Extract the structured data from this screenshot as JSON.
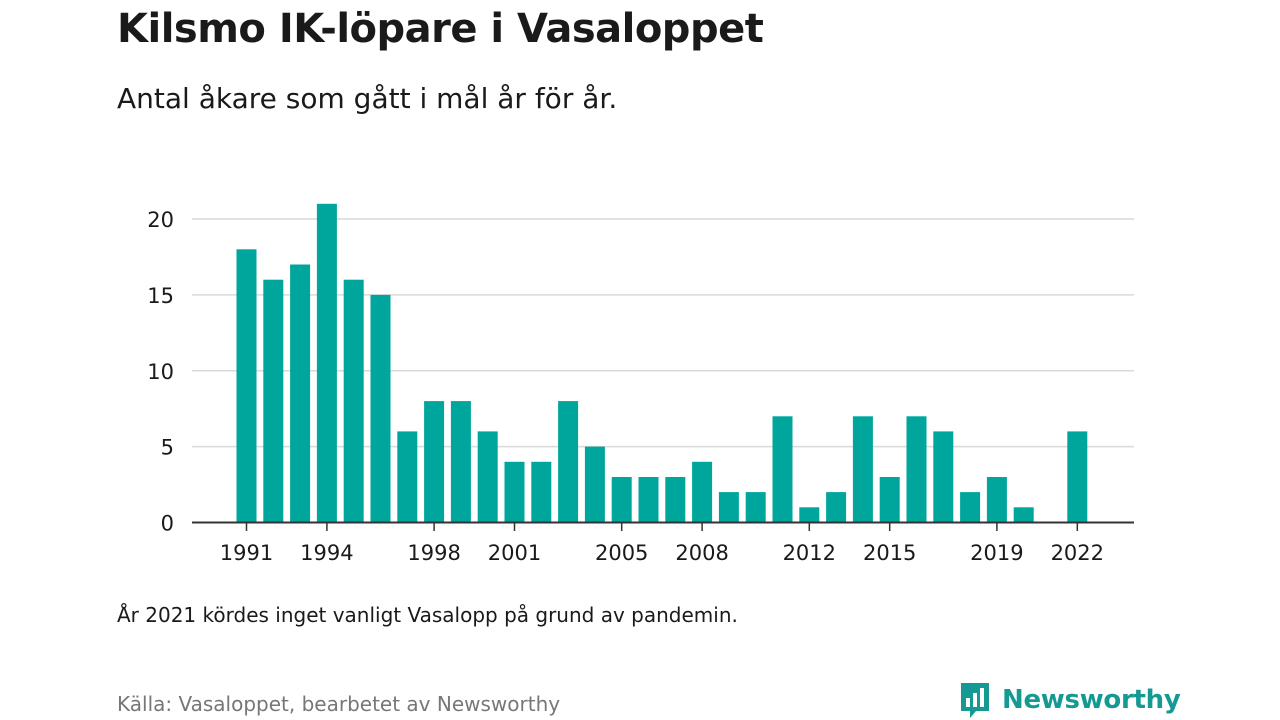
{
  "title": "Kilsmo IK-löpare i Vasaloppet",
  "subtitle": "Antal åkare som gått i mål år för år.",
  "note": "År 2021 kördes inget vanligt Vasalopp på grund av pandemin.",
  "source": "Källa: Vasaloppet, bearbetet av Newsworthy",
  "brand": {
    "name": "Newsworthy",
    "color": "#159a93"
  },
  "chart_data": {
    "type": "bar",
    "x": [
      1991,
      1992,
      1993,
      1994,
      1995,
      1996,
      1997,
      1998,
      1999,
      2000,
      2001,
      2002,
      2003,
      2004,
      2005,
      2006,
      2007,
      2008,
      2009,
      2010,
      2011,
      2012,
      2013,
      2014,
      2015,
      2016,
      2017,
      2018,
      2019,
      2020,
      2021,
      2022
    ],
    "values": [
      18,
      16,
      17,
      21,
      16,
      15,
      6,
      8,
      8,
      6,
      4,
      4,
      8,
      5,
      3,
      3,
      3,
      4,
      2,
      2,
      7,
      1,
      2,
      7,
      3,
      7,
      6,
      2,
      3,
      1,
      null,
      6
    ],
    "x_ticks": [
      "1991",
      "1994",
      "1998",
      "2001",
      "2005",
      "2008",
      "2012",
      "2015",
      "2019",
      "2022"
    ],
    "y_ticks": [
      "0",
      "5",
      "10",
      "15",
      "20"
    ],
    "ylim": [
      0,
      22
    ],
    "bar_color": "#00a59c",
    "grid": true,
    "xlabel": "",
    "ylabel": ""
  }
}
